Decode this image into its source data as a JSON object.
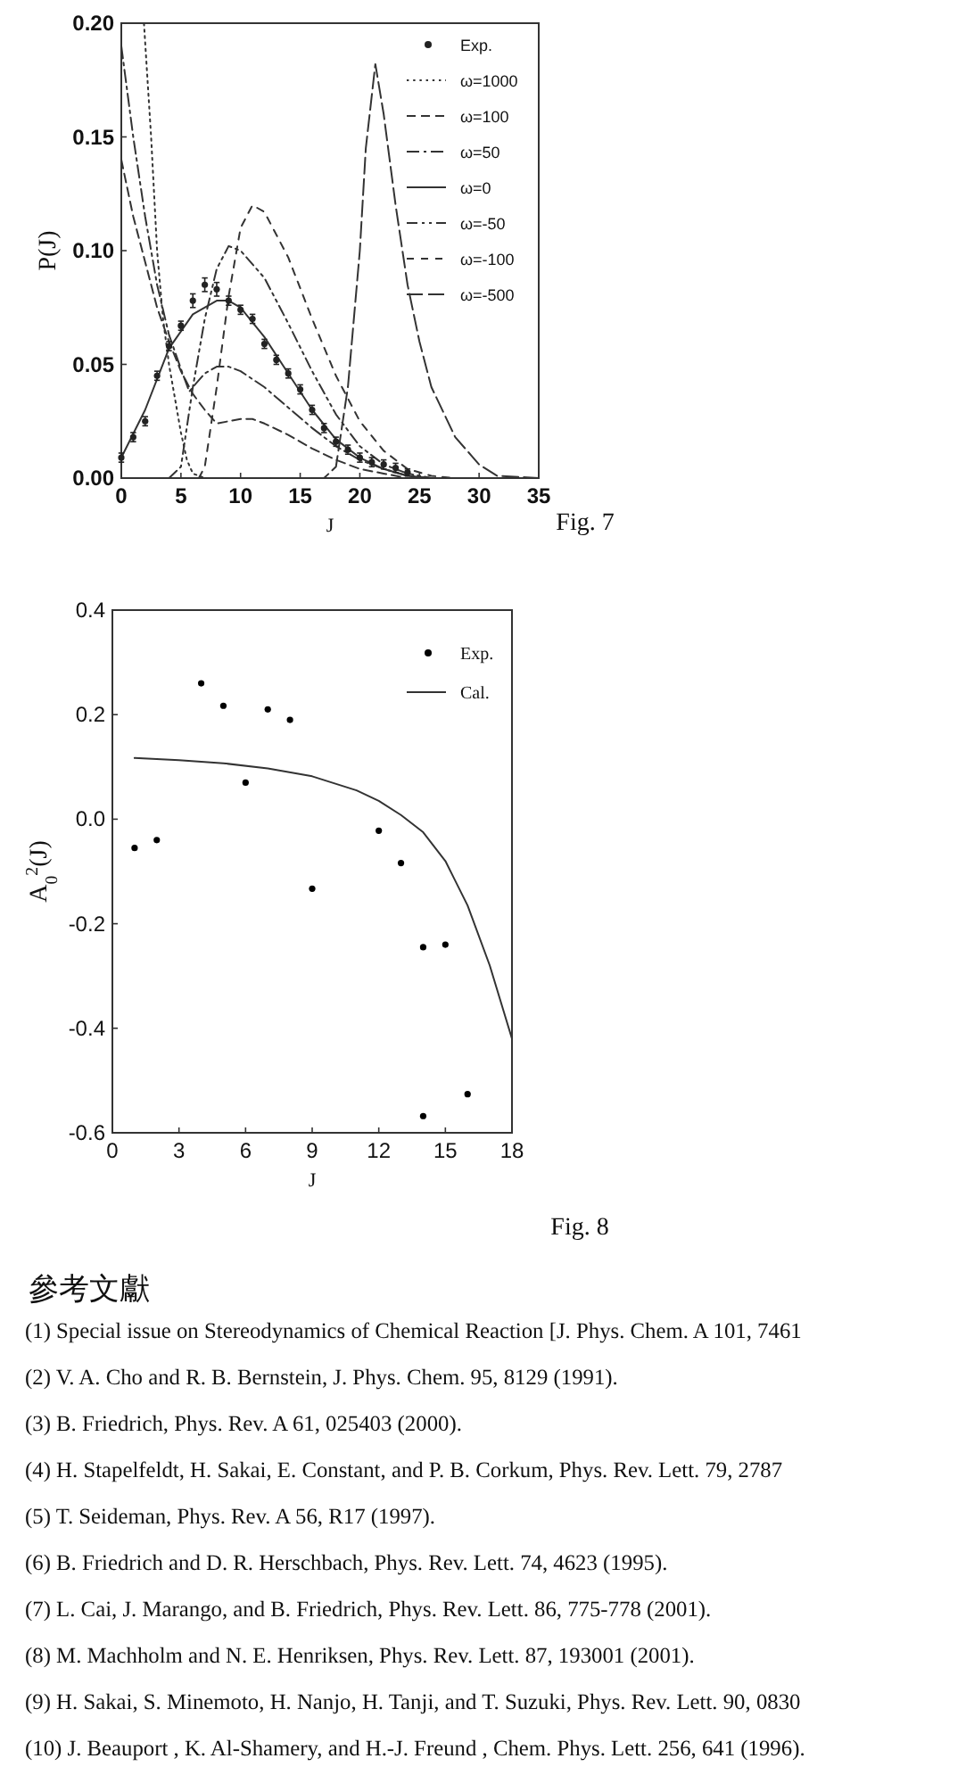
{
  "chart_data": [
    {
      "type": "line",
      "xlabel": "J",
      "ylabel": "P(J)",
      "xlim": [
        0,
        35
      ],
      "ylim": [
        0,
        0.2
      ],
      "xticks": [
        0,
        5,
        10,
        15,
        20,
        25,
        30,
        35
      ],
      "yticks": [
        {
          "value": 0,
          "label": "0.00"
        },
        {
          "value": 0.05,
          "label": "0.05"
        },
        {
          "value": 0.1,
          "label": "0.10"
        },
        {
          "value": 0.15,
          "label": "0.15"
        },
        {
          "value": 0.2,
          "label": "0.20"
        }
      ],
      "legend": "top right",
      "grid": false,
      "series": [
        {
          "name": "Exp.",
          "type": "scatter",
          "marker": "circle",
          "color": "#222222",
          "x": [
            0,
            1,
            2,
            3,
            4,
            5,
            6,
            7,
            8,
            9,
            10,
            11,
            12,
            13,
            14,
            15,
            16,
            17,
            18,
            19,
            20,
            21,
            22,
            23,
            24
          ],
          "values": [
            0.009,
            0.018,
            0.025,
            0.045,
            0.058,
            0.067,
            0.078,
            0.085,
            0.083,
            0.078,
            0.074,
            0.07,
            0.059,
            0.052,
            0.046,
            0.039,
            0.03,
            0.022,
            0.016,
            0.0125,
            0.009,
            0.007,
            0.006,
            0.0045,
            0.0025
          ],
          "errors": [
            0.002,
            0.002,
            0.002,
            0.002,
            0.002,
            0.002,
            0.003,
            0.003,
            0.003,
            0.002,
            0.002,
            0.002,
            0.002,
            0.002,
            0.002,
            0.002,
            0.002,
            0.002,
            0.002,
            0.002,
            0.002,
            0.002,
            0.002,
            0.002,
            0.0015
          ]
        },
        {
          "name": "ω=1000",
          "line_style": "dotted",
          "color": "#333333",
          "x": [
            1.9,
            2.5,
            3,
            3.5,
            4,
            5,
            5.5,
            6,
            7,
            20
          ],
          "values": [
            0.2,
            0.15,
            0.1,
            0.07,
            0.05,
            0.02,
            0.008,
            0.002,
            0,
            0
          ]
        },
        {
          "name": "ω=100",
          "line_style": "dashed",
          "color": "#333333",
          "x": [
            0,
            1,
            2,
            3,
            4,
            5,
            6,
            7,
            8,
            9,
            10,
            11,
            12,
            14,
            16,
            18,
            20,
            22,
            24,
            26
          ],
          "values": [
            0.14,
            0.115,
            0.095,
            0.075,
            0.06,
            0.047,
            0.037,
            0.03,
            0.024,
            0.025,
            0.026,
            0.026,
            0.024,
            0.019,
            0.013,
            0.008,
            0.004,
            0.002,
            0,
            0
          ]
        },
        {
          "name": "ω=50",
          "line_style": "dashed",
          "color": "#333333",
          "x": [
            0,
            1,
            2,
            3,
            4,
            5,
            5.7,
            6,
            7,
            8,
            9,
            10,
            12,
            14,
            16,
            18,
            20,
            22,
            24,
            26
          ],
          "values": [
            0.19,
            0.15,
            0.115,
            0.085,
            0.063,
            0.048,
            0.038,
            0.04,
            0.046,
            0.049,
            0.049,
            0.047,
            0.04,
            0.031,
            0.022,
            0.014,
            0.008,
            0.004,
            0.001,
            0
          ]
        },
        {
          "name": "ω=0",
          "line_style": "solid",
          "color": "#333333",
          "x": [
            0,
            2,
            4,
            6,
            8,
            9,
            10,
            12,
            14,
            16,
            18,
            20,
            22,
            24,
            26
          ],
          "values": [
            0.009,
            0.03,
            0.057,
            0.072,
            0.078,
            0.078,
            0.075,
            0.062,
            0.046,
            0.03,
            0.017,
            0.009,
            0.004,
            0.001,
            0
          ]
        },
        {
          "name": "ω=-50",
          "line_style": "dashed",
          "color": "#333333",
          "x": [
            4,
            5,
            6,
            7,
            8,
            9,
            10,
            12,
            14,
            16,
            18,
            20,
            22,
            24,
            26
          ],
          "values": [
            0,
            0.005,
            0.04,
            0.07,
            0.092,
            0.102,
            0.1,
            0.088,
            0.068,
            0.047,
            0.028,
            0.014,
            0.006,
            0.002,
            0
          ]
        },
        {
          "name": "ω=-100",
          "line_style": "dashed",
          "color": "#333333",
          "x": [
            6.5,
            7,
            8,
            9,
            10,
            11,
            12,
            14,
            16,
            18,
            20,
            22,
            24,
            26,
            28
          ],
          "values": [
            0,
            0.005,
            0.04,
            0.08,
            0.11,
            0.12,
            0.117,
            0.097,
            0.07,
            0.045,
            0.025,
            0.012,
            0.004,
            0.001,
            0
          ]
        },
        {
          "name": "ω=-500",
          "line_style": "dashed",
          "color": "#333333",
          "x": [
            0,
            17,
            18,
            19,
            20,
            20.5,
            21.3,
            22,
            23,
            24,
            25,
            26,
            28,
            30,
            31.5,
            35
          ],
          "values": [
            0,
            0,
            0.005,
            0.04,
            0.1,
            0.145,
            0.182,
            0.16,
            0.12,
            0.085,
            0.06,
            0.04,
            0.018,
            0.006,
            0.001,
            0
          ]
        }
      ],
      "annotations": [
        "Fig. 7"
      ]
    },
    {
      "type": "scatter",
      "xlabel": "J",
      "ylabel": "A$_{0}$$^{2}$(J)",
      "xlim": [
        0,
        18
      ],
      "ylim": [
        -0.6,
        0.4
      ],
      "xticks": [
        0,
        3,
        6,
        9,
        12,
        15,
        18
      ],
      "yticks": [
        -0.6,
        -0.4,
        -0.2,
        {
          "value": 0,
          "label": "0.0"
        },
        0.2,
        0.4
      ],
      "legend": "top right",
      "grid": false,
      "series": [
        {
          "name": "Exp.",
          "marker": "circle",
          "color": "#000000",
          "x": [
            1,
            2,
            4,
            5,
            6,
            7,
            8,
            9,
            12,
            13,
            14,
            15,
            14,
            16
          ],
          "values": [
            -0.055,
            -0.04,
            0.26,
            0.217,
            0.07,
            0.21,
            0.19,
            -0.133,
            -0.022,
            -0.084,
            -0.245,
            -0.24,
            -0.568,
            -0.526
          ]
        },
        {
          "name": "Cal.",
          "type": "line",
          "line_style": "solid",
          "color": "#333333",
          "x": [
            1,
            3,
            5,
            7,
            9,
            11,
            12,
            13,
            14,
            15,
            16,
            17,
            18
          ],
          "values": [
            0.117,
            0.113,
            0.107,
            0.097,
            0.082,
            0.055,
            0.035,
            0.008,
            -0.025,
            -0.08,
            -0.165,
            -0.28,
            -0.42
          ]
        }
      ],
      "annotations": [
        "Fig. 8",
        "參考文獻",
        "(1)  Special issue on Stereodynamics of Chemical Reaction [J. Phys. Chem. A 101, 7461",
        "(2)  V. A. Cho and R. B. Bernstein, J. Phys. Chem. 95, 8129 (1991).",
        "(3)  B. Friedrich, Phys. Rev. A 61, 025403 (2000).",
        "(4)  H. Stapelfeldt, H. Sakai, E. Constant, and P. B. Corkum, Phys. Rev. Lett. 79, 2787",
        "(5)  T. Seideman, Phys. Rev. A 56, R17 (1997).",
        "(6)  B. Friedrich and D. R. Herschbach, Phys. Rev. Lett. 74, 4623 (1995).",
        "(7)  L. Cai, J. Marango, and B. Friedrich, Phys. Rev. Lett. 86, 775-778 (2001).",
        "(8)  M. Machholm and N. E. Henriksen, Phys. Rev. Lett. 87, 193001 (2001).",
        "(9)  H. Sakai, S. Minemoto, H. Nanjo, H. Tanji, and T. Suzuki, Phys. Rev. Lett. 90, 0830",
        "(10) J. Beauport , K. Al-Shamery, and H.-J. Freund , Chem. Phys. Lett. 256, 641 (1996)."
      ]
    }
  ]
}
